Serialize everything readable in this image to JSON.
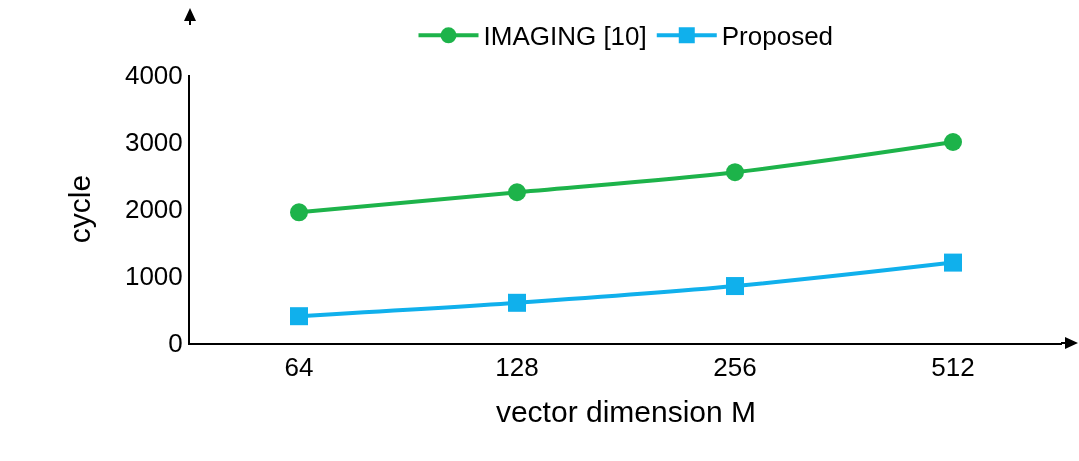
{
  "chart_data": {
    "type": "line",
    "xlabel": "vector dimension M",
    "ylabel": "cycle",
    "categories": [
      "64",
      "128",
      "256",
      "512"
    ],
    "ylim": [
      0,
      4000
    ],
    "yticks": [
      0,
      1000,
      2000,
      3000,
      4000
    ],
    "grid": false,
    "legend": "top",
    "line_style": "solid",
    "series": [
      {
        "name": "IMAGING [10]",
        "color": "#1db34a",
        "marker": "circle",
        "values": [
          1950,
          2250,
          2550,
          3000
        ]
      },
      {
        "name": "Proposed",
        "color": "#10b0ec",
        "marker": "square",
        "values": [
          400,
          600,
          850,
          1200
        ]
      }
    ]
  }
}
